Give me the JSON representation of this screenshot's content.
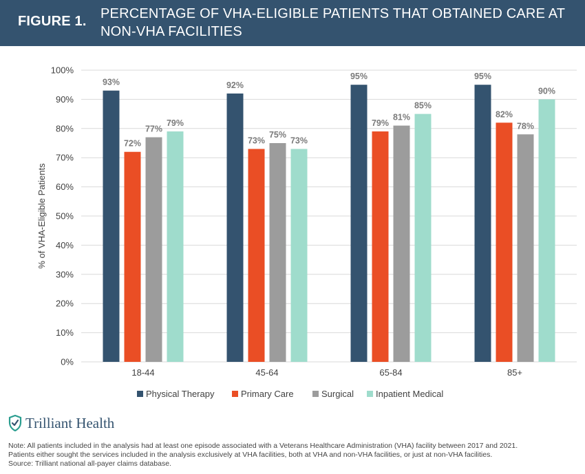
{
  "header": {
    "figure_label": "FIGURE 1.",
    "title": "PERCENTAGE OF VHA-ELIGIBLE PATIENTS THAT OBTAINED CARE AT NON-VHA FACILITIES"
  },
  "colors": {
    "header_bg": "#34536f",
    "physical_therapy": "#34536f",
    "primary_care": "#ea4e25",
    "surgical": "#9c9c9c",
    "inpatient_medical": "#9fdccc",
    "value_label": "#7a7a7a"
  },
  "chart_data": {
    "type": "bar",
    "categories": [
      "18-44",
      "45-64",
      "65-84",
      "85+"
    ],
    "series": [
      {
        "name": "Physical Therapy",
        "values": [
          93,
          92,
          95,
          95
        ]
      },
      {
        "name": "Primary Care",
        "values": [
          72,
          73,
          79,
          82
        ]
      },
      {
        "name": "Surgical",
        "values": [
          77,
          75,
          81,
          78
        ]
      },
      {
        "name": "Inpatient Medical",
        "values": [
          79,
          73,
          85,
          90
        ]
      }
    ],
    "value_labels": [
      [
        "93%",
        "92%",
        "95%",
        "95%"
      ],
      [
        "72%",
        "73%",
        "79%",
        "82%"
      ],
      [
        "77%",
        "75%",
        "81%",
        "78%"
      ],
      [
        "79%",
        "73%",
        "85%",
        "90%"
      ]
    ],
    "ylabel": "% of VHA-Eligible Patients",
    "xlabel": "",
    "ylim": [
      0,
      100
    ],
    "yticks": [
      "0%",
      "10%",
      "20%",
      "30%",
      "40%",
      "50%",
      "60%",
      "70%",
      "80%",
      "90%",
      "100%"
    ],
    "grid": true,
    "legend_position": "bottom"
  },
  "logo": {
    "icon": "shield-check-icon",
    "name": "Trilliant Health"
  },
  "notes": [
    "Note: All patients included in the analysis had at least one episode associated with a Veterans Healthcare Administration (VHA) facility between 2017 and 2021.",
    "Patients either sought the services included in the analysis exclusively at VHA facilities, both at VHA and non-VHA facilities, or just at non-VHA facilities.",
    "Source: Trilliant national all-payer claims database."
  ]
}
